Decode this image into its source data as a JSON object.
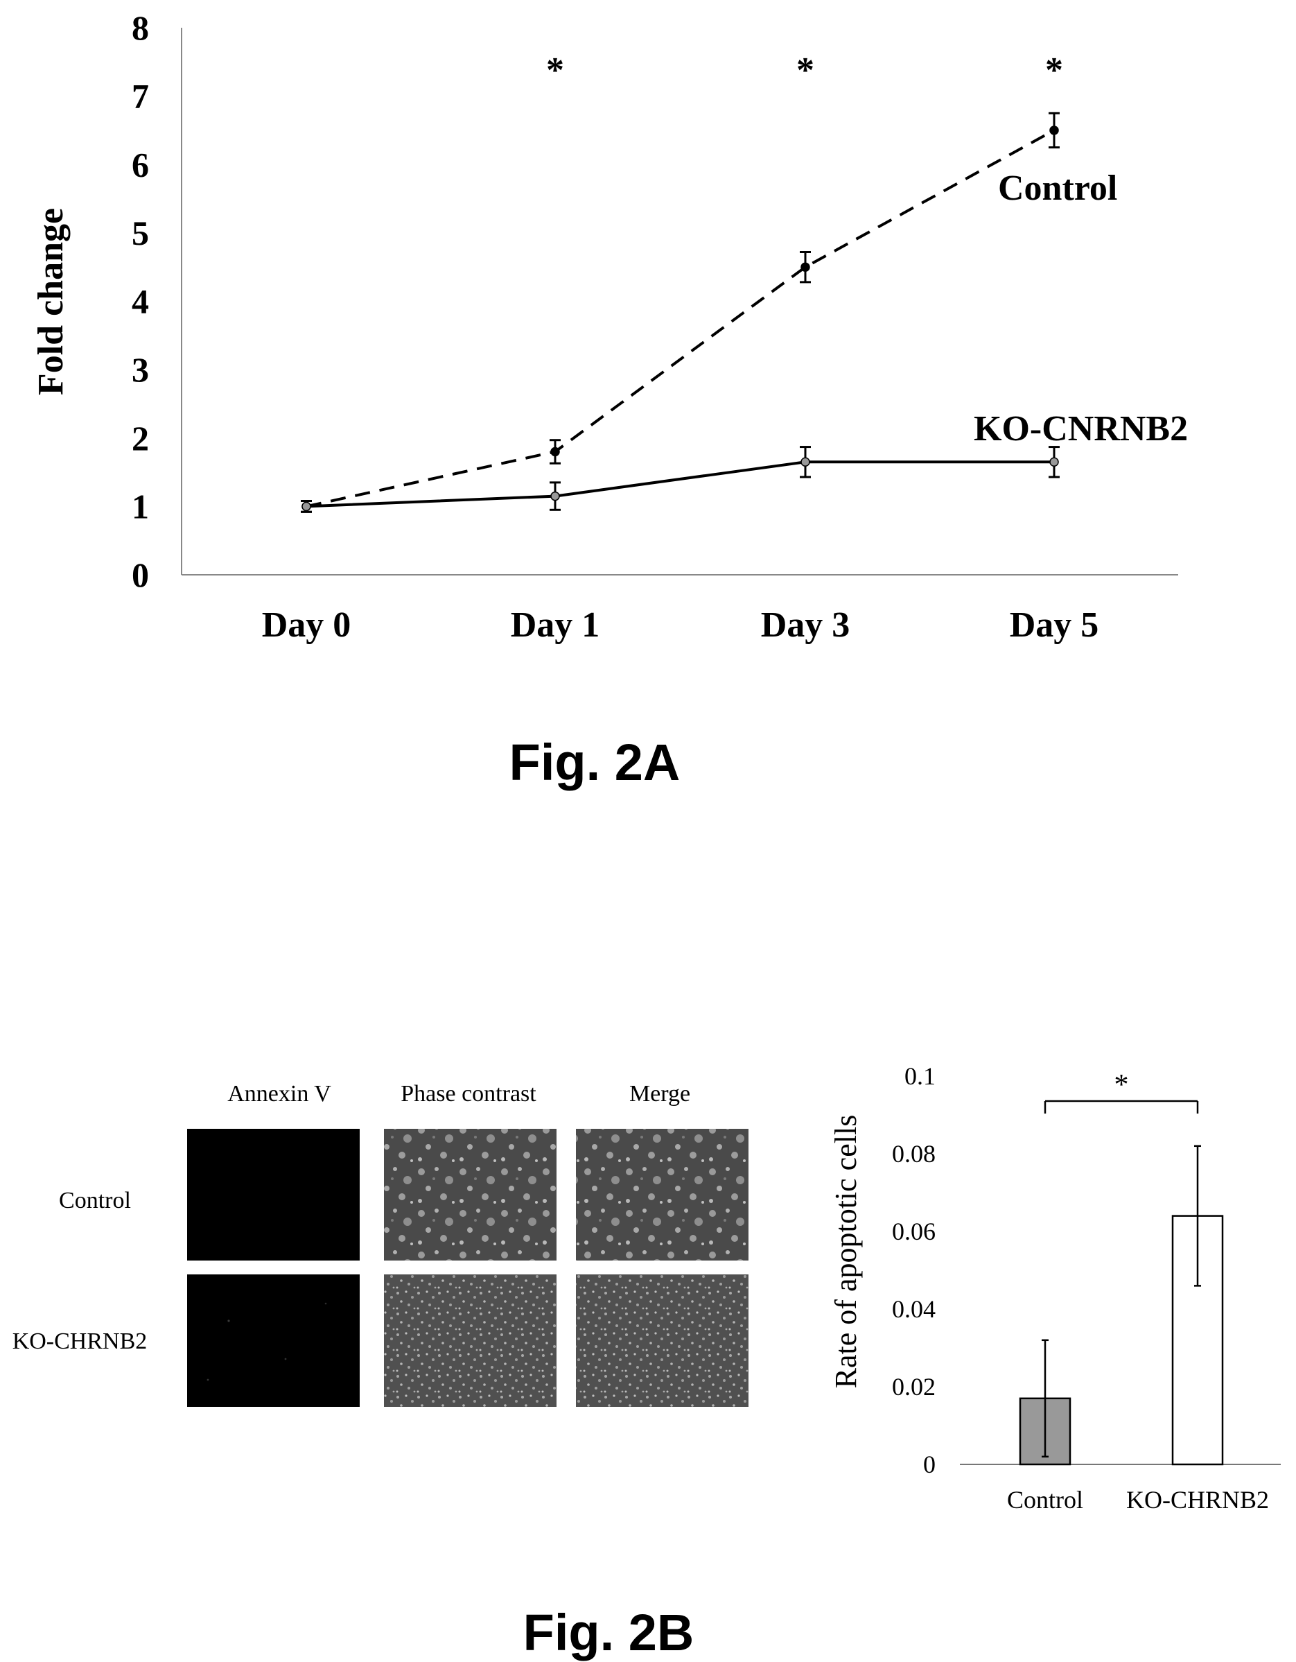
{
  "figure_a": {
    "caption": "Fig. 2A",
    "significance_mark": "*"
  },
  "figure_b": {
    "caption": "Fig. 2B",
    "micrograph_panel": {
      "columns": [
        "Annexin V",
        "Phase contrast",
        "Merge"
      ],
      "rows": [
        "Control",
        "KO-CHRNB2"
      ],
      "tiles": [
        {
          "row": "Control",
          "column": "Annexin V",
          "appearance": "black"
        },
        {
          "row": "Control",
          "column": "Phase contrast",
          "appearance": "grey speckled, sparse"
        },
        {
          "row": "Control",
          "column": "Merge",
          "appearance": "grey speckled, sparse"
        },
        {
          "row": "KO-CHRNB2",
          "column": "Annexin V",
          "appearance": "black, faint specks"
        },
        {
          "row": "KO-CHRNB2",
          "column": "Phase contrast",
          "appearance": "grey speckled, dense"
        },
        {
          "row": "KO-CHRNB2",
          "column": "Merge",
          "appearance": "grey speckled, dense"
        }
      ]
    },
    "significance_mark": "*"
  },
  "chart_data": [
    {
      "type": "line",
      "title": "",
      "xlabel": "",
      "ylabel": "Fold change",
      "categories": [
        "Day 0",
        "Day 1",
        "Day 3",
        "Day 5"
      ],
      "ylim": [
        0,
        8
      ],
      "yticks": [
        "0",
        "1",
        "2",
        "3",
        "4",
        "5",
        "6",
        "7",
        "8"
      ],
      "grid": false,
      "series": [
        {
          "name": "Control",
          "line_style": "dashed",
          "values": [
            1.0,
            1.8,
            4.5,
            6.5
          ],
          "error": [
            0.08,
            0.17,
            0.22,
            0.25
          ]
        },
        {
          "name": "KO-CNRNB2",
          "line_style": "solid",
          "values": [
            1.0,
            1.15,
            1.65,
            1.65
          ],
          "error": [
            0.08,
            0.2,
            0.22,
            0.22
          ]
        }
      ],
      "significance": [
        "",
        "*",
        "*",
        "*"
      ]
    },
    {
      "type": "bar",
      "title": "",
      "xlabel": "",
      "ylabel": "Rate of apoptotic cells",
      "categories": [
        "Control",
        "KO-CHRNB2"
      ],
      "values": [
        0.017,
        0.064
      ],
      "error": [
        0.015,
        0.018
      ],
      "ylim": [
        0,
        0.1
      ],
      "yticks": [
        "0",
        "0.02",
        "0.04",
        "0.06",
        "0.08",
        "0.1"
      ],
      "grid": false,
      "colors": [
        "#999999",
        "#ffffff"
      ],
      "significance": "*"
    }
  ]
}
